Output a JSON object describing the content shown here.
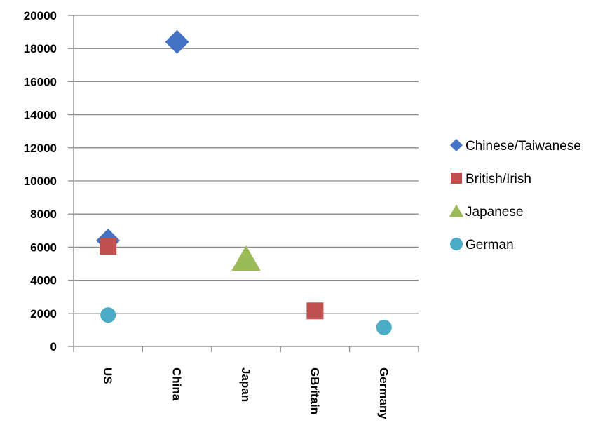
{
  "chart_data": {
    "type": "scatter",
    "categories": [
      "US",
      "China",
      "Japan",
      "GBritain",
      "Germany"
    ],
    "ylim": [
      0,
      20000
    ],
    "yticks": [
      0,
      2000,
      4000,
      6000,
      8000,
      10000,
      12000,
      14000,
      16000,
      18000,
      20000
    ],
    "grid": true,
    "legend_position": "right",
    "series": [
      {
        "name": "Chinese/Taiwanese",
        "marker": "diamond",
        "color": "#4472C4",
        "points": [
          {
            "category": "US",
            "value": 6400
          },
          {
            "category": "China",
            "value": 18400
          }
        ]
      },
      {
        "name": "British/Irish",
        "marker": "square",
        "color": "#C0504D",
        "points": [
          {
            "category": "US",
            "value": 6050
          },
          {
            "category": "GBritain",
            "value": 2150
          }
        ]
      },
      {
        "name": "Japanese",
        "marker": "triangle",
        "color": "#9BBB59",
        "points": [
          {
            "category": "Japan",
            "value": 5300
          }
        ]
      },
      {
        "name": "German",
        "marker": "circle",
        "color": "#4BACC6",
        "points": [
          {
            "category": "US",
            "value": 1900
          },
          {
            "category": "Germany",
            "value": 1150
          }
        ]
      }
    ]
  }
}
